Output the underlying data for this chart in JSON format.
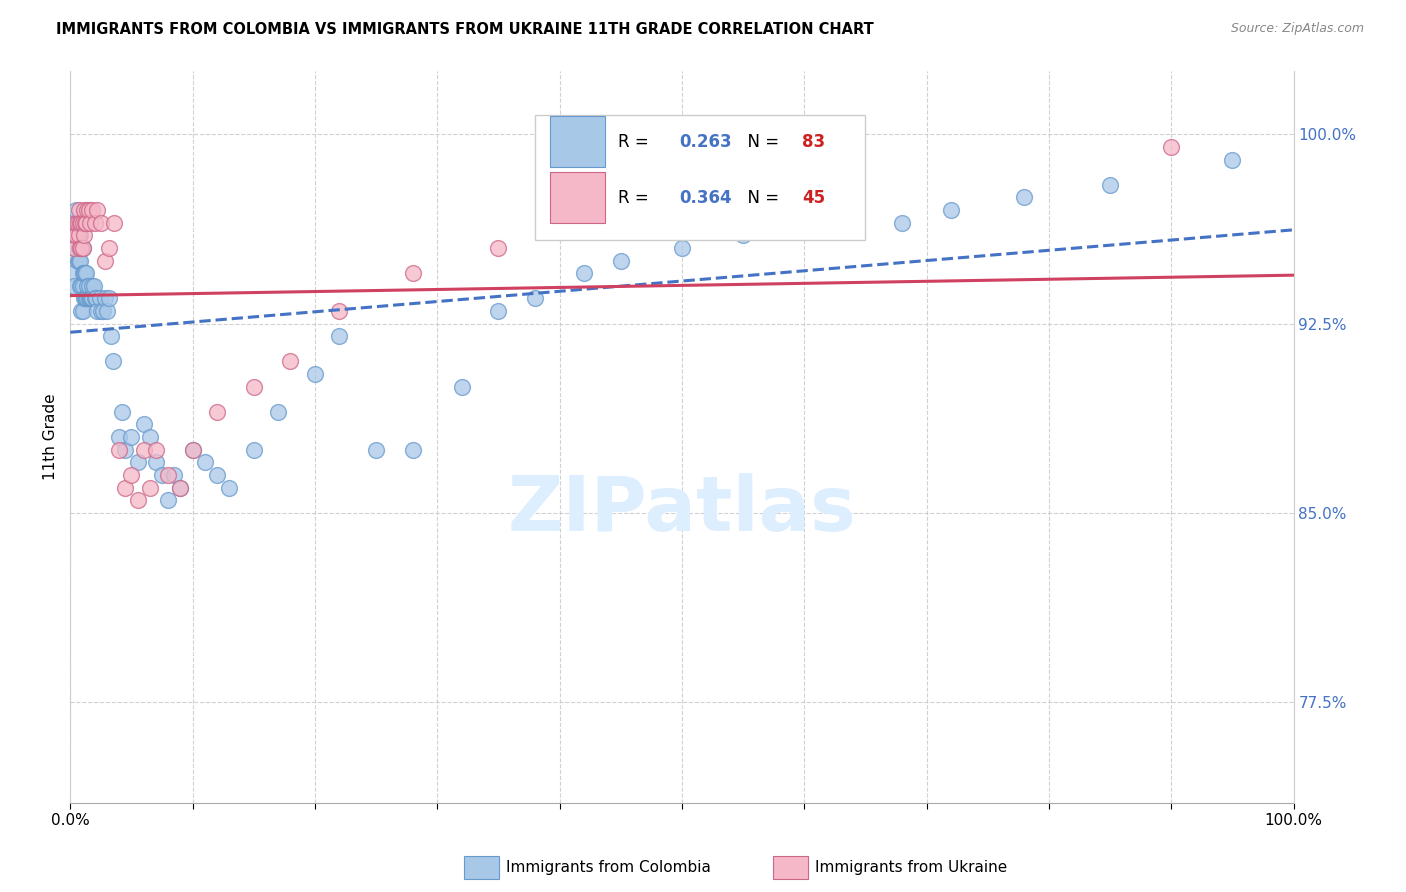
{
  "title": "IMMIGRANTS FROM COLOMBIA VS IMMIGRANTS FROM UKRAINE 11TH GRADE CORRELATION CHART",
  "source": "Source: ZipAtlas.com",
  "ylabel": "11th Grade",
  "y_ticks": [
    0.775,
    0.85,
    0.925,
    1.0
  ],
  "y_tick_labels": [
    "77.5%",
    "85.0%",
    "92.5%",
    "100.0%"
  ],
  "xlim": [
    0.0,
    1.0
  ],
  "ylim": [
    0.735,
    1.025
  ],
  "colombia_color": "#a8c8e8",
  "ukraine_color": "#f5b8c8",
  "colombia_line_color": "#4472c4",
  "ukraine_line_color": "#d04060",
  "colombia_R": 0.263,
  "colombia_N": 83,
  "ukraine_R": 0.364,
  "ukraine_N": 45,
  "colombia_label": "Immigrants from Colombia",
  "ukraine_label": "Immigrants from Ukraine",
  "legend_R_color": "#4472c4",
  "legend_N_color": "#cc2222",
  "watermark_color": "#ddeeff",
  "colombia_x": [
    0.002,
    0.003,
    0.004,
    0.004,
    0.005,
    0.005,
    0.005,
    0.006,
    0.006,
    0.007,
    0.007,
    0.007,
    0.008,
    0.008,
    0.008,
    0.009,
    0.009,
    0.009,
    0.01,
    0.01,
    0.01,
    0.01,
    0.011,
    0.011,
    0.012,
    0.012,
    0.013,
    0.013,
    0.014,
    0.014,
    0.015,
    0.015,
    0.016,
    0.017,
    0.018,
    0.018,
    0.019,
    0.02,
    0.021,
    0.022,
    0.024,
    0.025,
    0.027,
    0.028,
    0.03,
    0.032,
    0.033,
    0.035,
    0.04,
    0.042,
    0.045,
    0.05,
    0.055,
    0.06,
    0.065,
    0.07,
    0.075,
    0.08,
    0.085,
    0.09,
    0.1,
    0.11,
    0.12,
    0.13,
    0.15,
    0.17,
    0.2,
    0.22,
    0.25,
    0.28,
    0.32,
    0.35,
    0.38,
    0.42,
    0.45,
    0.5,
    0.55,
    0.62,
    0.68,
    0.72,
    0.78,
    0.85,
    0.95
  ],
  "colombia_y": [
    0.945,
    0.94,
    0.955,
    0.96,
    0.96,
    0.965,
    0.97,
    0.95,
    0.96,
    0.95,
    0.955,
    0.965,
    0.94,
    0.95,
    0.96,
    0.93,
    0.94,
    0.955,
    0.93,
    0.94,
    0.945,
    0.955,
    0.935,
    0.945,
    0.935,
    0.945,
    0.935,
    0.945,
    0.935,
    0.94,
    0.935,
    0.94,
    0.935,
    0.935,
    0.935,
    0.94,
    0.94,
    0.935,
    0.935,
    0.93,
    0.935,
    0.93,
    0.93,
    0.935,
    0.93,
    0.935,
    0.92,
    0.91,
    0.88,
    0.89,
    0.875,
    0.88,
    0.87,
    0.885,
    0.88,
    0.87,
    0.865,
    0.855,
    0.865,
    0.86,
    0.875,
    0.87,
    0.865,
    0.86,
    0.875,
    0.89,
    0.905,
    0.92,
    0.875,
    0.875,
    0.9,
    0.93,
    0.935,
    0.945,
    0.95,
    0.955,
    0.96,
    0.965,
    0.965,
    0.97,
    0.975,
    0.98,
    0.99
  ],
  "ukraine_x": [
    0.002,
    0.003,
    0.004,
    0.005,
    0.005,
    0.006,
    0.007,
    0.007,
    0.008,
    0.008,
    0.009,
    0.009,
    0.01,
    0.01,
    0.011,
    0.011,
    0.012,
    0.013,
    0.014,
    0.015,
    0.016,
    0.018,
    0.02,
    0.022,
    0.025,
    0.028,
    0.032,
    0.036,
    0.04,
    0.045,
    0.05,
    0.055,
    0.06,
    0.065,
    0.07,
    0.08,
    0.09,
    0.1,
    0.12,
    0.15,
    0.18,
    0.22,
    0.28,
    0.35,
    0.9
  ],
  "ukraine_y": [
    0.96,
    0.955,
    0.96,
    0.96,
    0.965,
    0.965,
    0.96,
    0.97,
    0.955,
    0.965,
    0.955,
    0.965,
    0.955,
    0.965,
    0.96,
    0.97,
    0.965,
    0.965,
    0.97,
    0.97,
    0.965,
    0.97,
    0.965,
    0.97,
    0.965,
    0.95,
    0.955,
    0.965,
    0.875,
    0.86,
    0.865,
    0.855,
    0.875,
    0.86,
    0.875,
    0.865,
    0.86,
    0.875,
    0.89,
    0.9,
    0.91,
    0.93,
    0.945,
    0.955,
    0.995
  ]
}
